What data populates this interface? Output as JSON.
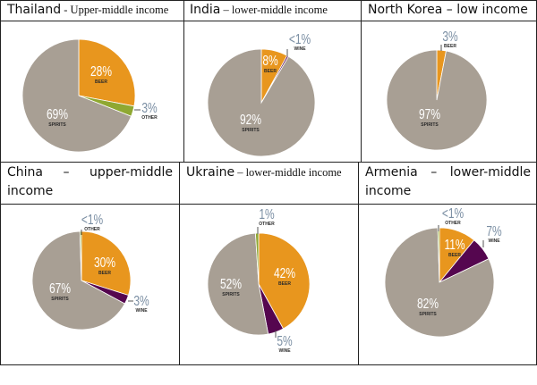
{
  "colors": {
    "beer": "#e8961e",
    "spirits": "#a89f94",
    "wine": "#55064f",
    "other": "#8fa832",
    "callout": "#7a8ea3",
    "border": "#222222"
  },
  "cells": [
    {
      "country": "Thailand",
      "sep": " - ",
      "income": "Upper-middle income"
    },
    {
      "country": "India",
      "sep": " – ",
      "income": "lower-middle income"
    },
    {
      "country": "North Korea – low income"
    },
    {
      "country": "China",
      "line1": "–",
      "line1b": "upper-middle",
      "line2": "income"
    },
    {
      "country": "Ukraine",
      "sep": " – ",
      "income": "lower-middle income"
    },
    {
      "country": "Armenia",
      "line1": "–",
      "line1b": "lower-middle",
      "line2": "income"
    }
  ],
  "chart_data": [
    {
      "type": "pie",
      "title": "Thailand",
      "slices": [
        {
          "name": "BEER",
          "value": 28,
          "label": "28%"
        },
        {
          "name": "OTHER",
          "value": 3,
          "label": "3%"
        },
        {
          "name": "SPIRITS",
          "value": 69,
          "label": "69%"
        }
      ]
    },
    {
      "type": "pie",
      "title": "India",
      "slices": [
        {
          "name": "BEER",
          "value": 8,
          "label": "8%"
        },
        {
          "name": "WINE",
          "value": 0.5,
          "label": "<1%"
        },
        {
          "name": "SPIRITS",
          "value": 92,
          "label": "92%"
        }
      ]
    },
    {
      "type": "pie",
      "title": "North Korea",
      "slices": [
        {
          "name": "BEER",
          "value": 3,
          "label": "3%"
        },
        {
          "name": "SPIRITS",
          "value": 97,
          "label": "97%"
        }
      ]
    },
    {
      "type": "pie",
      "title": "China",
      "slices": [
        {
          "name": "BEER",
          "value": 30,
          "label": "30%"
        },
        {
          "name": "WINE",
          "value": 3,
          "label": "3%"
        },
        {
          "name": "SPIRITS",
          "value": 67,
          "label": "67%"
        },
        {
          "name": "OTHER",
          "value": 0.5,
          "label": "<1%"
        }
      ]
    },
    {
      "type": "pie",
      "title": "Ukraine",
      "slices": [
        {
          "name": "BEER",
          "value": 42,
          "label": "42%"
        },
        {
          "name": "WINE",
          "value": 5,
          "label": "5%"
        },
        {
          "name": "SPIRITS",
          "value": 52,
          "label": "52%"
        },
        {
          "name": "OTHER",
          "value": 1,
          "label": "1%"
        }
      ]
    },
    {
      "type": "pie",
      "title": "Armenia",
      "slices": [
        {
          "name": "BEER",
          "value": 11,
          "label": "11%"
        },
        {
          "name": "WINE",
          "value": 7,
          "label": "7%"
        },
        {
          "name": "SPIRITS",
          "value": 82,
          "label": "82%"
        },
        {
          "name": "OTHER",
          "value": 0.5,
          "label": "<1%"
        }
      ]
    }
  ]
}
